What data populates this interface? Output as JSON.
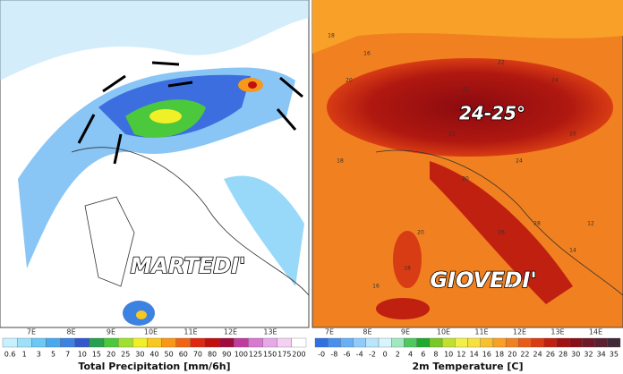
{
  "left": {
    "day": "MARTEDI'",
    "longitudes": [
      "7E",
      "8E",
      "9E",
      "10E",
      "11E",
      "12E",
      "13E"
    ],
    "scale": {
      "labels": [
        "0.6",
        "1",
        "3",
        "5",
        "7",
        "10",
        "15",
        "20",
        "25",
        "30",
        "40",
        "50",
        "60",
        "70",
        "80",
        "90",
        "100",
        "125",
        "150",
        "175",
        "200"
      ],
      "colors": [
        "#c8f0ff",
        "#9ee0fa",
        "#6cc8f5",
        "#4aa8ee",
        "#3c82e0",
        "#3258cc",
        "#28a050",
        "#4cc83c",
        "#a0e030",
        "#f0f028",
        "#f8c820",
        "#f89818",
        "#f06414",
        "#e02810",
        "#c01010",
        "#a00c40",
        "#c03c9c",
        "#d878d0",
        "#e8a8e8",
        "#f4d0f4",
        "#ffffff"
      ],
      "title": "Total Precipitation [mm/6h]"
    }
  },
  "right": {
    "day": "GIOVEDI'",
    "annotation": "24-25°",
    "longitudes": [
      "7E",
      "8E",
      "9E",
      "10E",
      "11E",
      "12E",
      "13E",
      "14E"
    ],
    "scale": {
      "labels": [
        "-0",
        "-8",
        "-6",
        "-4",
        "-2",
        "0",
        "2",
        "4",
        "6",
        "8",
        "10",
        "12",
        "14",
        "16",
        "18",
        "20",
        "22",
        "24",
        "26",
        "28",
        "30",
        "32",
        "34",
        "35"
      ],
      "colors": [
        "#3070e0",
        "#4890ee",
        "#68b0f6",
        "#90ccfa",
        "#b8e4fc",
        "#d8f4fc",
        "#a0e8c0",
        "#50c860",
        "#20a830",
        "#78c828",
        "#c0e030",
        "#f0f048",
        "#f8e040",
        "#f8c030",
        "#f8a028",
        "#f08020",
        "#e85c18",
        "#d83c14",
        "#c02010",
        "#a01010",
        "#881018",
        "#701828",
        "#582030",
        "#402838"
      ],
      "title": "2m Temperature [C]"
    },
    "map_numbers": [
      "18",
      "16",
      "20",
      "22",
      "24",
      "22",
      "20",
      "18",
      "22",
      "24",
      "28",
      "26",
      "20",
      "18",
      "16",
      "14",
      "12",
      "20",
      "22"
    ]
  }
}
